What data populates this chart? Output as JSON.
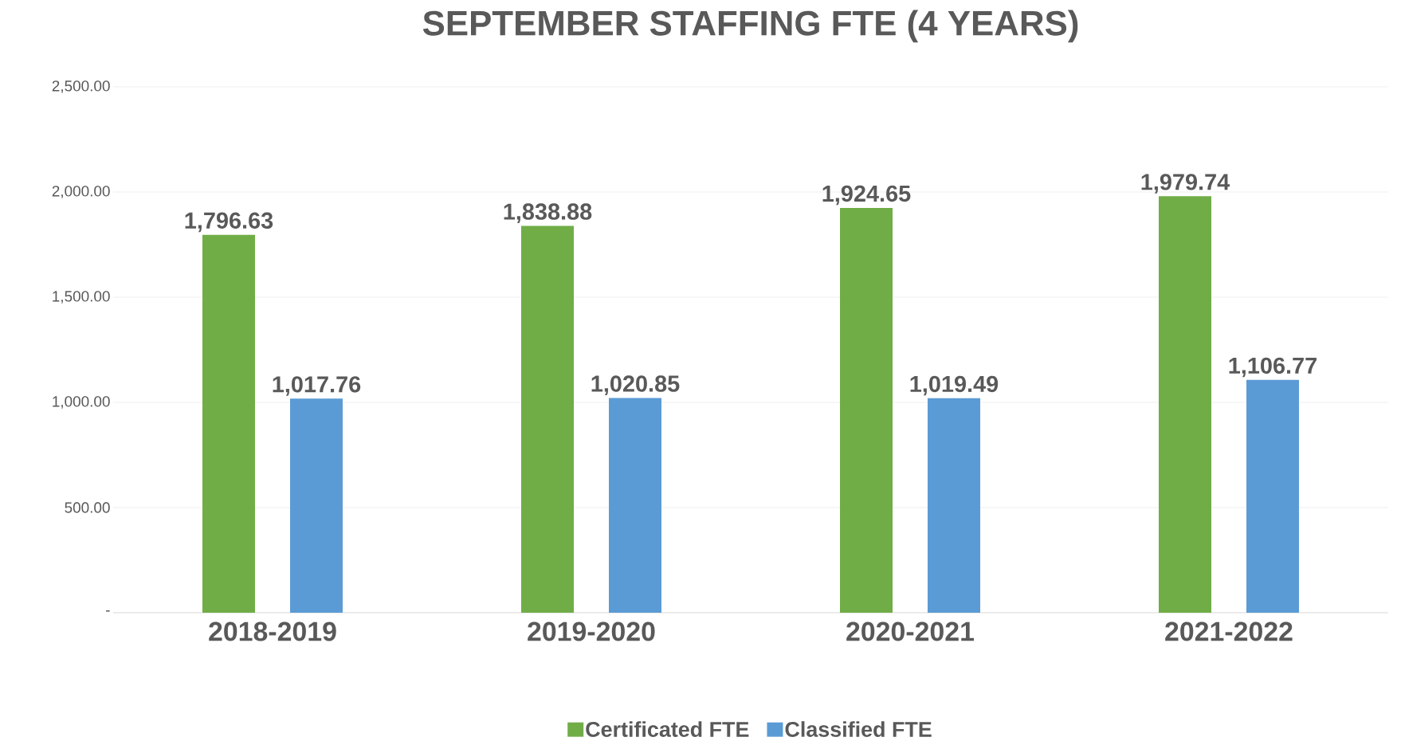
{
  "chart_data": {
    "type": "bar",
    "title": "SEPTEMBER STAFFING FTE (4 YEARS)",
    "categories": [
      "2018-2019",
      "2019-2020",
      "2020-2021",
      "2021-2022"
    ],
    "series": [
      {
        "name": "Certificated FTE",
        "color": "#70ad47",
        "values": [
          1796.63,
          1838.88,
          1924.65,
          1979.74
        ],
        "value_labels": [
          "1,796.63",
          "1,838.88",
          "1,924.65",
          "1,979.74"
        ]
      },
      {
        "name": "Classified FTE",
        "color": "#5b9bd5",
        "values": [
          1017.76,
          1020.85,
          1019.49,
          1106.77
        ],
        "value_labels": [
          "1,017.76",
          "1,020.85",
          "1,019.49",
          "1,106.77"
        ]
      }
    ],
    "ylim": [
      0,
      2500
    ],
    "yticks": [
      {
        "value": 0,
        "label": "-"
      },
      {
        "value": 500,
        "label": "500.00"
      },
      {
        "value": 1000,
        "label": "1,000.00"
      },
      {
        "value": 1500,
        "label": "1,500.00"
      },
      {
        "value": 2000,
        "label": "2,000.00"
      },
      {
        "value": 2500,
        "label": "2,500.00"
      }
    ],
    "grid": "y",
    "legend": "bottom"
  }
}
